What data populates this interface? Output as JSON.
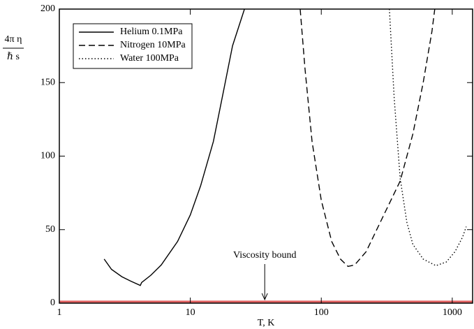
{
  "chart_data": {
    "type": "line",
    "ylabel": {
      "numerator": "4π η",
      "denominator": "ℏ s"
    },
    "xlabel": "T, K",
    "xscale": "log",
    "xlim": [
      1,
      1430
    ],
    "ylim": [
      0,
      200
    ],
    "xticks": [
      1,
      10,
      100,
      1000
    ],
    "yticks": [
      0,
      50,
      100,
      150,
      200
    ],
    "series": [
      {
        "name": "Helium 0.1MPa",
        "color": "#000000",
        "dash": "solid",
        "x": [
          2.2,
          2.5,
          3,
          3.5,
          4.15,
          4.25,
          5,
          6,
          8,
          10,
          12,
          15,
          18,
          21,
          25.9
        ],
        "values": [
          30,
          23,
          18,
          15,
          12,
          14,
          19,
          26,
          42,
          60,
          80,
          110,
          145,
          175,
          200
        ]
      },
      {
        "name": "Nitrogen 10MPa",
        "color": "#000000",
        "dash": "dashed",
        "x": [
          69,
          75,
          85,
          100,
          120,
          140,
          160,
          180,
          220,
          300,
          400,
          500,
          600,
          700,
          735
        ],
        "values": [
          200,
          160,
          110,
          70,
          42,
          30,
          25,
          26,
          35,
          60,
          83,
          115,
          150,
          185,
          200
        ]
      },
      {
        "name": "Water 100MPa",
        "color": "#000000",
        "dash": "dotted",
        "x": [
          331,
          360,
          400,
          450,
          500,
          600,
          750,
          900,
          1050,
          1200,
          1277
        ],
        "values": [
          200,
          140,
          85,
          55,
          40,
          30,
          25.5,
          28,
          35,
          45,
          52
        ]
      }
    ],
    "bound": {
      "value": 1,
      "color": "#e06060"
    },
    "annotation": {
      "text": "Viscosity bound",
      "x": 37
    },
    "legend": "upper left"
  }
}
